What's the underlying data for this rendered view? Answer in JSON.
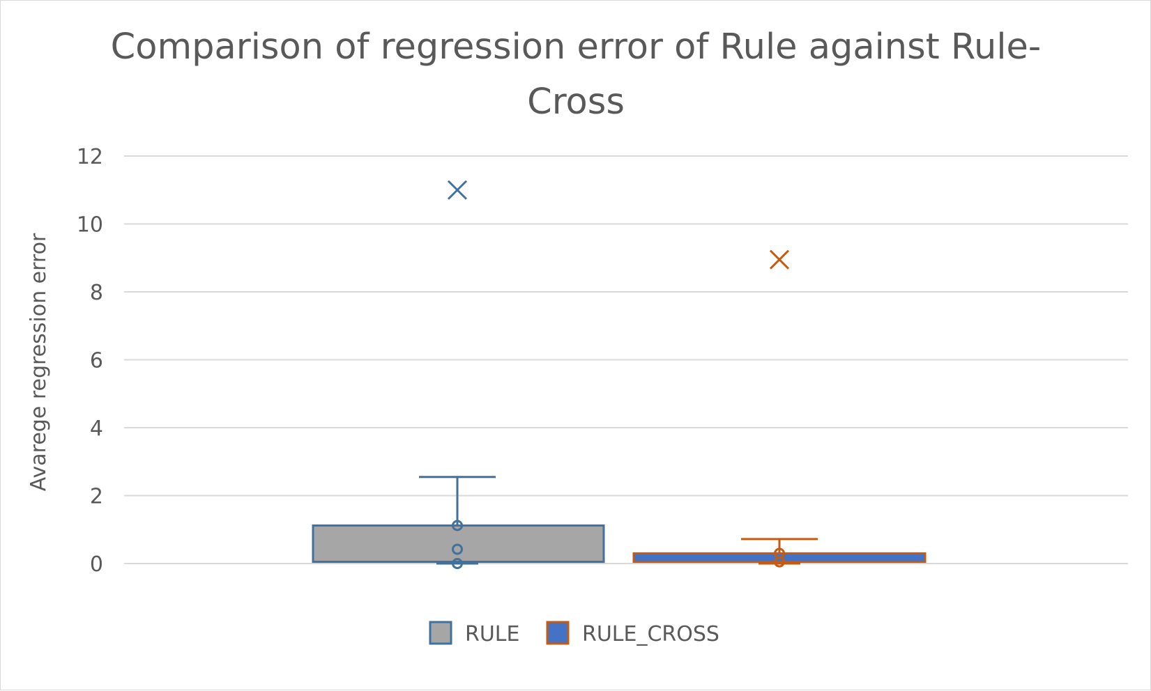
{
  "chart_data": {
    "type": "boxplot",
    "title_lines": [
      "Comparison of regression error of Rule against Rule-",
      "Cross"
    ],
    "xlabel": "",
    "ylabel": "Avarege regression error",
    "ylim": [
      0,
      12
    ],
    "yticks": [
      0,
      2,
      4,
      6,
      8,
      10,
      12
    ],
    "grid": true,
    "legend_position": "bottom",
    "series": [
      {
        "name": "RULE",
        "fill": "#a6a6a6",
        "stroke": "#41719c",
        "min": 0,
        "q1": 0.05,
        "median": 0.05,
        "q3": 1.12,
        "whisker_max": 2.55,
        "points": [
          0.0,
          0.42,
          1.12
        ],
        "outliers": [
          11.0
        ],
        "mean": 11.0,
        "mean_marker_color": "#41719c"
      },
      {
        "name": "RULE_CROSS",
        "fill": "#4472c4",
        "stroke": "#c55a11",
        "min": 0,
        "q1": 0.05,
        "median": 0.05,
        "q3": 0.3,
        "whisker_max": 0.72,
        "points": [
          0.05,
          0.3
        ],
        "outliers": [],
        "mean": 8.95,
        "mean_marker_color": "#c55a11"
      }
    ]
  }
}
